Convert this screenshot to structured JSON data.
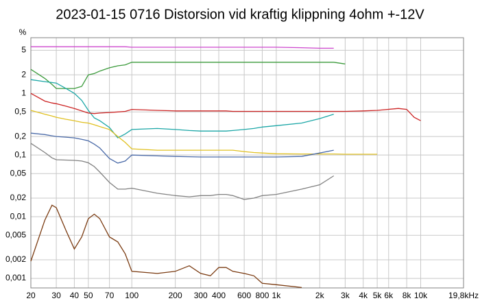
{
  "chart_data": {
    "type": "line",
    "title": "2023-01-15 0716 Distorsion vid kraftig klippning 4ohm +-12V",
    "y_label": "%",
    "xscale": "log",
    "yscale": "log",
    "grid": true,
    "xlim": [
      20,
      19800
    ],
    "ylim": [
      0.0007,
      8
    ],
    "xticks": [
      20,
      30,
      40,
      50,
      70,
      100,
      200,
      300,
      400,
      600,
      800,
      {
        "value": 1000,
        "label": "1k"
      },
      {
        "value": 2000,
        "label": "2k"
      },
      {
        "value": 3000,
        "label": "3k"
      },
      {
        "value": 4000,
        "label": "4k"
      },
      {
        "value": 5000,
        "label": "5k"
      },
      {
        "value": 6000,
        "label": "6k"
      },
      {
        "value": 8000,
        "label": "8k"
      },
      {
        "value": 10000,
        "label": "10k"
      },
      {
        "value": 19800,
        "label": "19,8kHz"
      }
    ],
    "yticks": [
      5,
      2,
      1,
      {
        "value": 0.5,
        "label": "0,5"
      },
      {
        "value": 0.2,
        "label": "0,2"
      },
      {
        "value": 0.1,
        "label": "0,1"
      },
      {
        "value": 0.05,
        "label": "0,05"
      },
      {
        "value": 0.02,
        "label": "0,02"
      },
      {
        "value": 0.01,
        "label": "0,01"
      },
      {
        "value": 0.005,
        "label": "0,005"
      },
      {
        "value": 0.002,
        "label": "0,002"
      },
      {
        "value": 0.001,
        "label": "0,001"
      }
    ],
    "x": [
      20,
      25,
      28,
      30,
      35,
      40,
      45,
      50,
      55,
      60,
      70,
      80,
      90,
      100,
      150,
      200,
      250,
      300,
      350,
      400,
      450,
      500,
      600,
      700,
      800,
      1000,
      1500,
      2000,
      2500,
      3000,
      4000,
      5000,
      7000,
      8000,
      9000,
      10000
    ],
    "series": [
      {
        "color": "#cc44cc",
        "values": [
          5.7,
          5.7,
          5.7,
          5.7,
          5.7,
          5.7,
          5.7,
          5.7,
          5.7,
          5.7,
          5.7,
          5.7,
          5.7,
          5.6,
          5.6,
          5.6,
          5.6,
          5.6,
          5.6,
          5.6,
          5.6,
          5.6,
          5.6,
          5.6,
          5.6,
          5.6,
          5.5,
          5.4,
          5.4,
          null,
          null,
          null,
          null,
          null,
          null,
          null
        ]
      },
      {
        "color": "#3a9a3a",
        "values": [
          2.45,
          1.75,
          1.4,
          1.2,
          1.2,
          1.2,
          1.3,
          2.0,
          2.1,
          2.3,
          2.6,
          2.8,
          2.9,
          3.2,
          3.2,
          3.2,
          3.2,
          3.2,
          3.2,
          3.2,
          3.2,
          3.2,
          3.2,
          3.2,
          3.2,
          3.2,
          3.2,
          3.2,
          3.2,
          3.0,
          null,
          null,
          null,
          null,
          null,
          null
        ]
      },
      {
        "color": "#1aa6a6",
        "values": [
          1.67,
          1.55,
          1.5,
          1.47,
          1.2,
          1.0,
          0.77,
          0.53,
          0.4,
          0.36,
          0.28,
          0.19,
          0.22,
          0.26,
          0.27,
          0.26,
          0.25,
          0.245,
          0.245,
          0.245,
          0.245,
          0.25,
          0.26,
          0.27,
          0.285,
          0.3,
          0.33,
          0.39,
          0.46,
          null,
          null,
          null,
          null,
          null,
          null,
          null
        ]
      },
      {
        "color": "#cc2222",
        "values": [
          1.0,
          0.75,
          0.7,
          0.68,
          0.62,
          0.57,
          0.52,
          0.48,
          0.47,
          0.48,
          0.49,
          0.5,
          0.51,
          0.55,
          0.53,
          0.52,
          0.52,
          0.52,
          0.52,
          0.52,
          0.52,
          0.51,
          0.51,
          0.51,
          0.51,
          0.51,
          0.51,
          0.51,
          0.51,
          0.51,
          0.52,
          0.53,
          0.57,
          0.55,
          0.41,
          0.36
        ]
      },
      {
        "color": "#e0c020",
        "values": [
          0.53,
          0.46,
          0.43,
          0.41,
          0.38,
          0.36,
          0.34,
          0.33,
          0.31,
          0.29,
          0.26,
          0.2,
          0.16,
          0.126,
          0.12,
          0.12,
          0.12,
          0.12,
          0.12,
          0.12,
          0.12,
          0.12,
          0.114,
          0.11,
          0.108,
          0.105,
          0.104,
          0.104,
          0.104,
          0.103,
          0.103,
          0.103,
          null,
          null,
          null,
          null
        ]
      },
      {
        "color": "#4a6aa8",
        "values": [
          0.227,
          0.215,
          0.205,
          0.2,
          0.195,
          0.19,
          0.18,
          0.17,
          0.15,
          0.13,
          0.088,
          0.074,
          0.08,
          0.1,
          0.097,
          0.095,
          0.094,
          0.093,
          0.093,
          0.093,
          0.093,
          0.093,
          0.093,
          0.093,
          0.093,
          0.093,
          0.095,
          0.108,
          0.12,
          null,
          null,
          null,
          null,
          null,
          null,
          null
        ]
      },
      {
        "color": "#808080",
        "values": [
          0.155,
          0.11,
          0.09,
          0.084,
          0.083,
          0.082,
          0.08,
          0.075,
          0.065,
          0.053,
          0.036,
          0.028,
          0.028,
          0.029,
          0.024,
          0.022,
          0.021,
          0.022,
          0.022,
          0.023,
          0.023,
          0.022,
          0.019,
          0.02,
          0.022,
          0.023,
          0.028,
          0.033,
          0.046,
          null,
          null,
          null,
          null,
          null,
          null,
          null
        ]
      },
      {
        "color": "#7a3a10",
        "values": [
          0.0019,
          0.0088,
          0.0154,
          0.014,
          0.006,
          0.003,
          0.0047,
          0.0093,
          0.011,
          0.0093,
          0.0047,
          0.0039,
          0.0025,
          0.0013,
          0.0012,
          0.0013,
          0.0016,
          0.0012,
          0.0011,
          0.0015,
          0.0015,
          0.0013,
          0.0012,
          0.0011,
          0.00083,
          0.00079,
          0.00071,
          null,
          null,
          null,
          null,
          null,
          null,
          null,
          null,
          null
        ]
      }
    ]
  }
}
